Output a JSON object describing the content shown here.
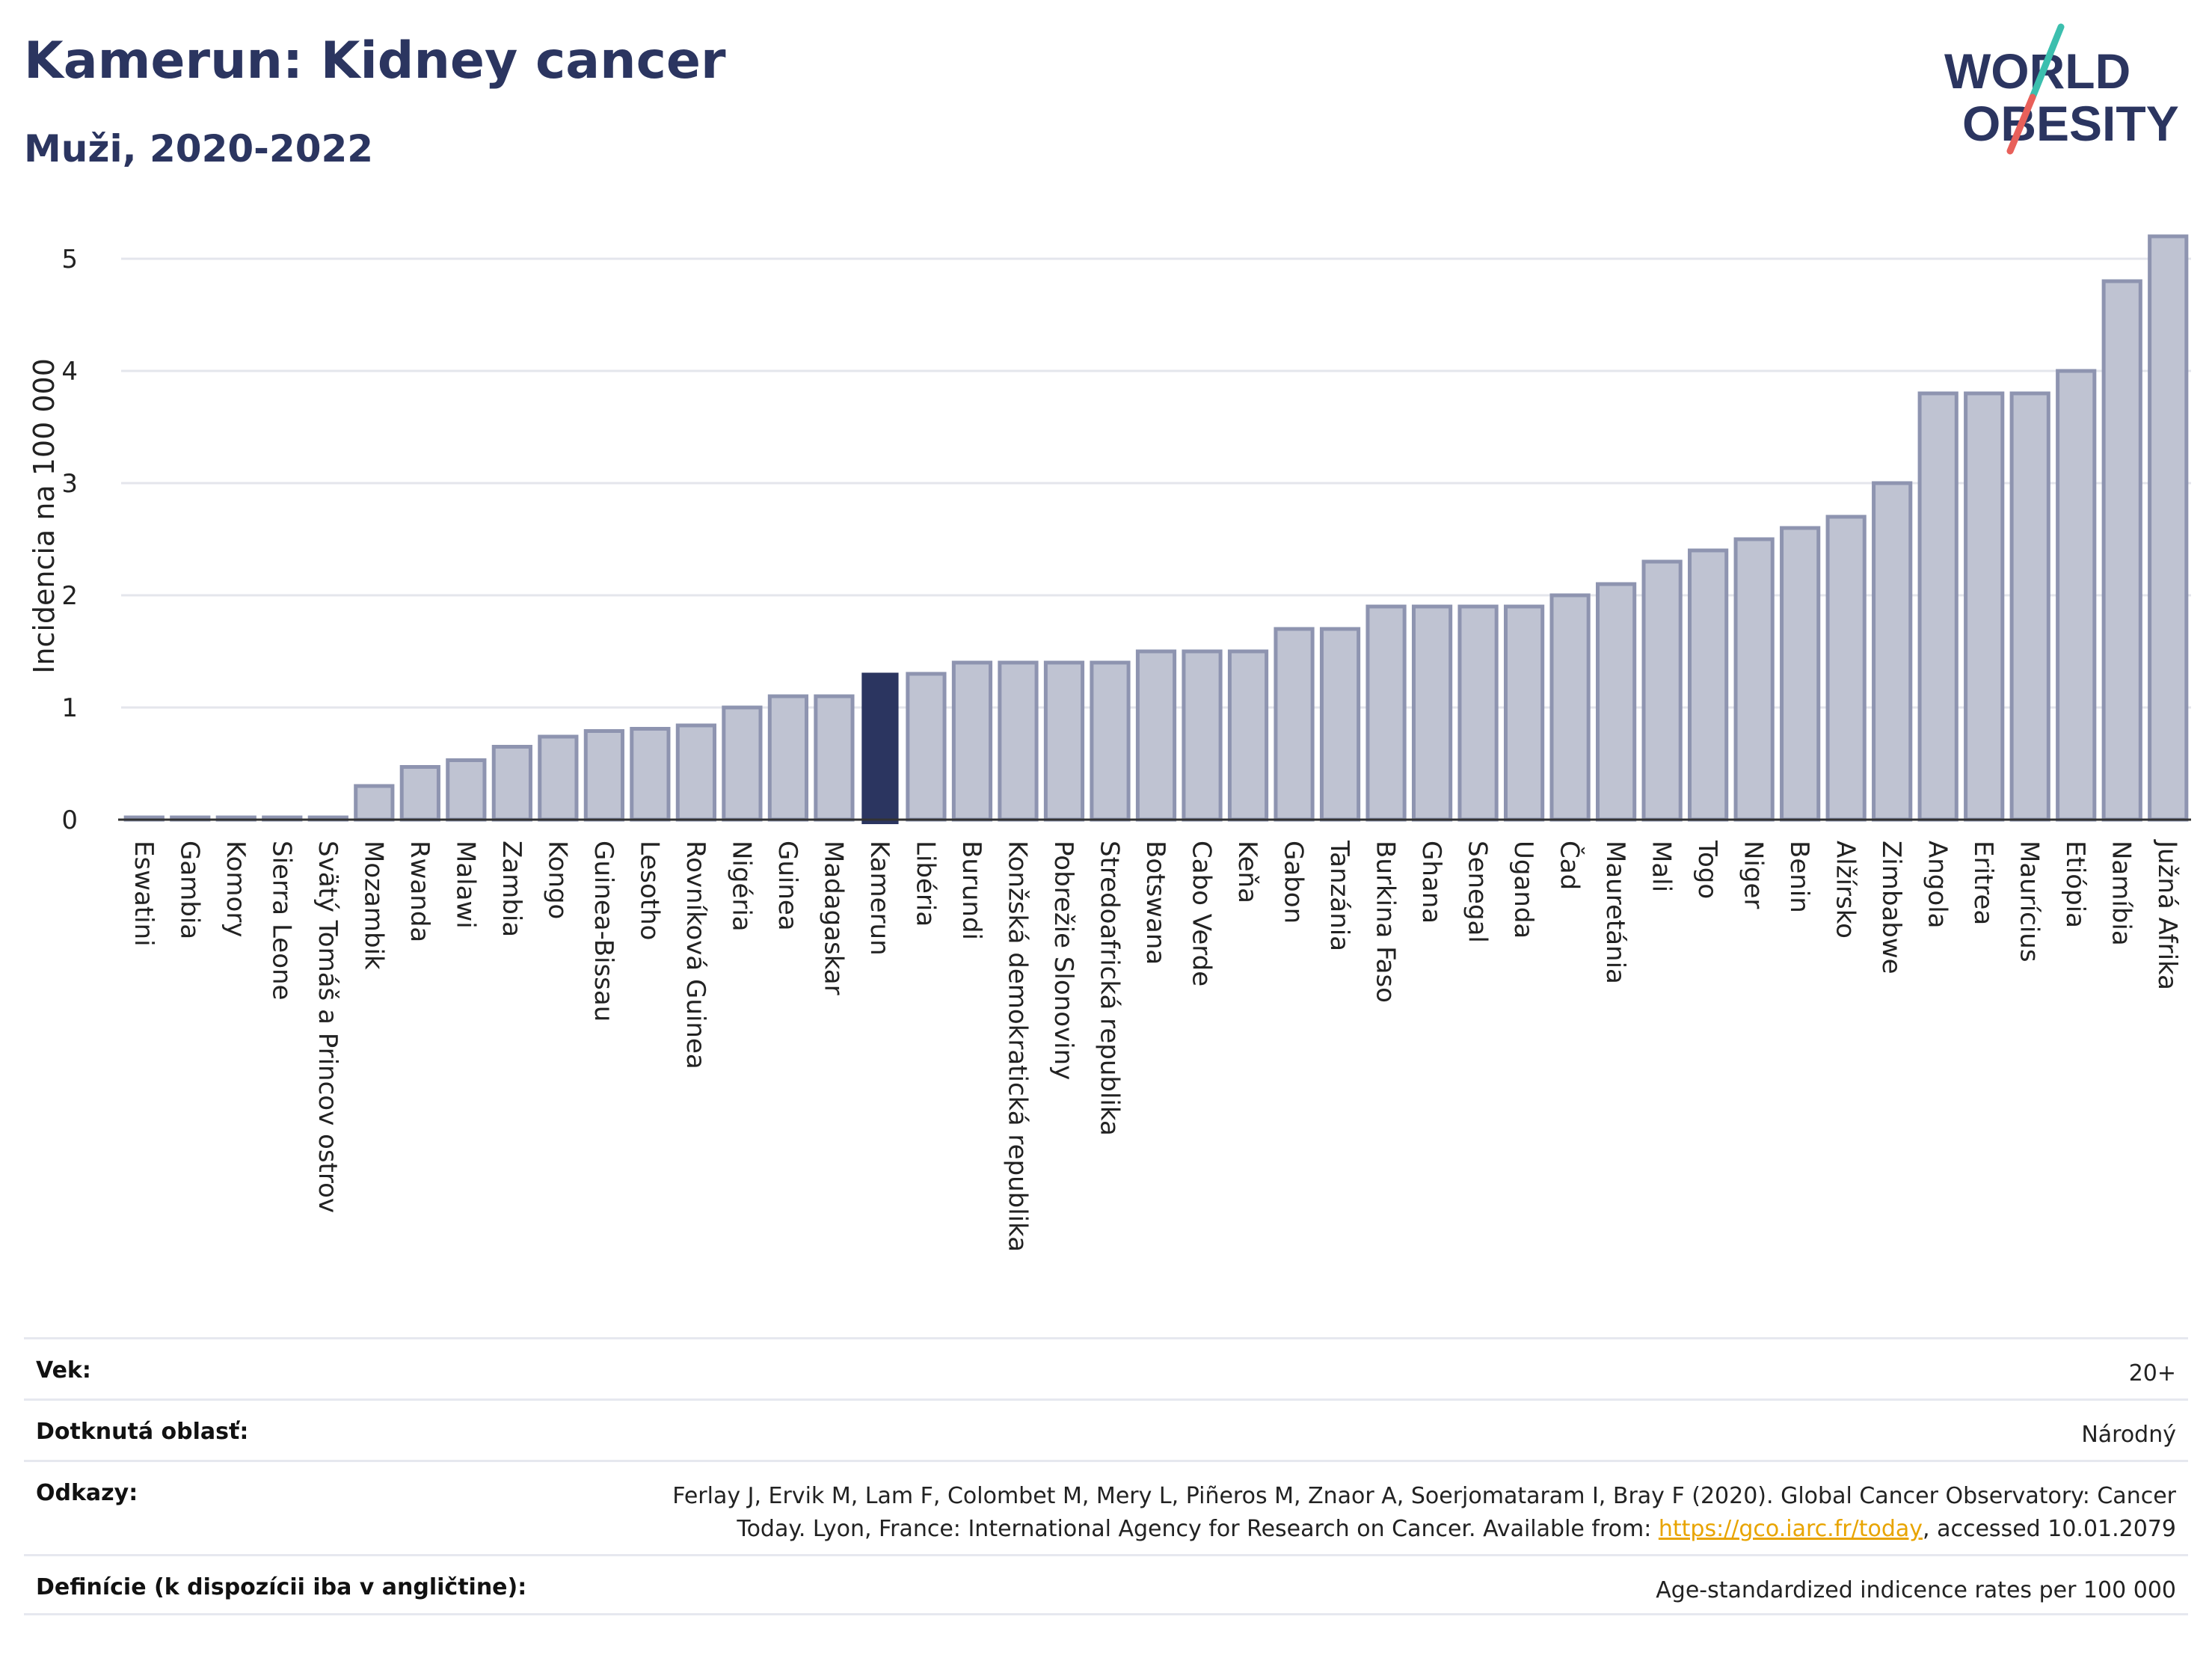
{
  "header": {
    "title": "Kamerun: Kidney cancer",
    "subtitle": "Muži, 2020-2022"
  },
  "logo": {
    "line1": "WORLD",
    "line2": "OBESITY",
    "slash_colors": [
      "#3cbfae",
      "#e8605a"
    ]
  },
  "colors": {
    "bar_default": "#bfc3d2",
    "bar_default_stroke": "#8e94b0",
    "bar_highlight": "#2b3560",
    "text_primary": "#2b3560",
    "link": "#e8a400"
  },
  "chart_data": {
    "type": "bar",
    "title": "Kamerun: Kidney cancer",
    "subtitle": "Muži, 2020-2022",
    "ylabel": "Incidencia na 100 000",
    "xlabel": "",
    "ylim": [
      0,
      5.3
    ],
    "yticks": [
      0,
      1,
      2,
      3,
      4,
      5
    ],
    "grid": true,
    "highlight": "Kamerun",
    "categories": [
      "Eswatini",
      "Gambia",
      "Komory",
      "Sierra Leone",
      "Svätý Tomáš a Princov ostrov",
      "Mozambik",
      "Rwanda",
      "Malawi",
      "Zambia",
      "Kongo",
      "Guinea-Bissau",
      "Lesotho",
      "Rovníková Guinea",
      "Nigéria",
      "Guinea",
      "Madagaskar",
      "Kamerun",
      "Libéria",
      "Burundi",
      "Konžská demokratická republika",
      "Pobrežie Slonoviny",
      "Stredoafrická republika",
      "Botswana",
      "Cabo Verde",
      "Keňa",
      "Gabon",
      "Tanzánia",
      "Burkina Faso",
      "Ghana",
      "Senegal",
      "Uganda",
      "Čad",
      "Mauretánia",
      "Mali",
      "Togo",
      "Niger",
      "Benin",
      "Alžírsko",
      "Zimbabwe",
      "Angola",
      "Eritrea",
      "Maurícius",
      "Etiópia",
      "Namíbia",
      "Južná Afrika"
    ],
    "values": [
      0.02,
      0.02,
      0.02,
      0.02,
      0.02,
      0.3,
      0.47,
      0.53,
      0.65,
      0.74,
      0.79,
      0.81,
      0.84,
      1.0,
      1.1,
      1.1,
      1.31,
      1.3,
      1.4,
      1.4,
      1.4,
      1.4,
      1.5,
      1.5,
      1.5,
      1.7,
      1.7,
      1.9,
      1.9,
      1.9,
      1.9,
      2.0,
      2.1,
      2.3,
      2.4,
      2.5,
      2.6,
      2.7,
      3.0,
      3.8,
      3.8,
      3.8,
      4.0,
      4.8,
      5.2
    ]
  },
  "info_table": [
    {
      "label": "Vek:",
      "value": "20+"
    },
    {
      "label": "Dotknutá oblasť:",
      "value": "Národný"
    },
    {
      "label": "Odkazy:",
      "value_line1": "Ferlay J, Ervik M, Lam F, Colombet M, Mery L, Piñeros M, Znaor A, Soerjomataram I, Bray F (2020). Global Cancer Observatory: Cancer",
      "value_line2_pre": "Today. Lyon, France: International Agency for Research on Cancer. Available from: ",
      "link_text": "https://gco.iarc.fr/today",
      "value_line2_post": ", accessed 10.01.2079"
    },
    {
      "label": "Definície (k dispozícii iba v angličtine):",
      "value": "Age-standardized indicence rates per 100 000"
    }
  ]
}
